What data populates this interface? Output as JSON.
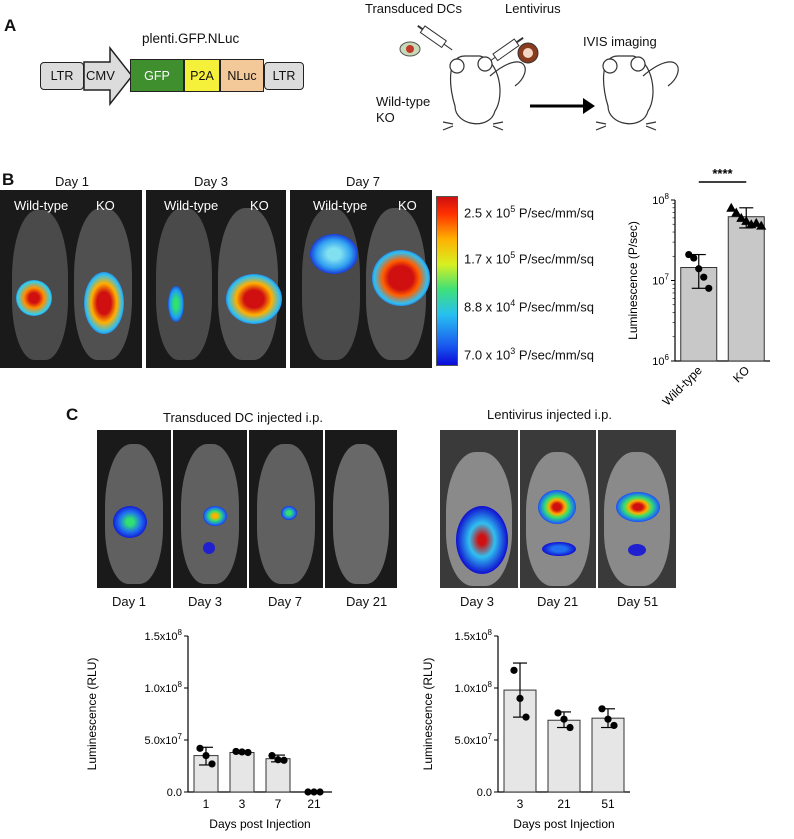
{
  "panelA": {
    "letter": "A",
    "construct_title": "plenti.GFP.NLuc",
    "segments": [
      "LTR",
      "CMV",
      "GFP",
      "P2A",
      "NLuc",
      "LTR"
    ],
    "transduced_dcs": "Transduced DCs",
    "lentivirus": "Lentivirus",
    "ivis": "IVIS imaging",
    "wildtype": "Wild-type",
    "ko": "KO"
  },
  "panelB": {
    "letter": "B",
    "days": [
      "Day 1",
      "Day 3",
      "Day 7"
    ],
    "wildtype": "Wild-type",
    "ko": "KO",
    "scale": [
      {
        "mant": "2.5 x 10",
        "exp": "5",
        "unit": " P/sec/mm/sq"
      },
      {
        "mant": "1.7 x 10",
        "exp": "5",
        "unit": " P/sec/mm/sq"
      },
      {
        "mant": "8.8 x 10",
        "exp": "4",
        "unit": " P/sec/mm/sq"
      },
      {
        "mant": "7.0 x 10",
        "exp": "3",
        "unit": " P/sec/mm/sq"
      }
    ],
    "sig": "****"
  },
  "panelC": {
    "letter": "C",
    "left_title": "Transduced DC injected i.p.",
    "right_title": "Lentivirus injected i.p.",
    "left_days": [
      "Day 1",
      "Day 3",
      "Day 7",
      "Day 21"
    ],
    "right_days": [
      "Day 3",
      "Day 21",
      "Day 51"
    ]
  },
  "chart_data": [
    {
      "type": "bar",
      "panel": "B",
      "categories": [
        "Wild-type",
        "KO"
      ],
      "values": [
        14500000,
        62000000
      ],
      "errors": [
        [
          8000000,
          21000000
        ],
        [
          45000000,
          80000000
        ]
      ],
      "points": [
        [
          21000000,
          19000000,
          14000000,
          11000000,
          8000000
        ],
        [
          80000000,
          70000000,
          60000000,
          55000000,
          50000000,
          52000000,
          48000000
        ]
      ],
      "ylabel": "Luminescence (P/sec)",
      "yscale": "log",
      "ylim": [
        1000000,
        100000000
      ],
      "yticks": [
        {
          "b": "10",
          "e": "6"
        },
        {
          "b": "10",
          "e": "7"
        },
        {
          "b": "10",
          "e": "8"
        }
      ]
    },
    {
      "type": "bar",
      "panel": "C-left",
      "categories": [
        "1",
        "3",
        "7",
        "21"
      ],
      "values": [
        35000000,
        38000000,
        32000000,
        0
      ],
      "errors": [
        [
          26000000,
          43000000
        ],
        [
          37000000,
          39500000
        ],
        [
          29000000,
          35500000
        ],
        [
          0,
          0
        ]
      ],
      "points": [
        [
          42000000,
          35000000,
          27000000
        ],
        [
          39000000,
          38500000,
          38000000
        ],
        [
          35000000,
          31000000,
          30500000
        ],
        [
          0,
          0,
          0
        ]
      ],
      "xlabel": "Days post Injection",
      "ylabel": "Luminescence (RLU)",
      "ylim": [
        0,
        150000000
      ],
      "yticks": [
        {
          "b": "0.0",
          "e": ""
        },
        {
          "b": "5.0x10",
          "e": "7"
        },
        {
          "b": "1.0x10",
          "e": "8"
        },
        {
          "b": "1.5x10",
          "e": "8"
        }
      ]
    },
    {
      "type": "bar",
      "panel": "C-right",
      "categories": [
        "3",
        "21",
        "51"
      ],
      "values": [
        98000000,
        69000000,
        71000000
      ],
      "errors": [
        [
          72000000,
          124000000
        ],
        [
          62000000,
          77000000
        ],
        [
          62000000,
          80000000
        ]
      ],
      "points": [
        [
          117000000,
          90000000,
          72000000
        ],
        [
          76000000,
          70000000,
          62000000
        ],
        [
          80000000,
          70000000,
          64000000
        ]
      ],
      "xlabel": "Days post Injection",
      "ylabel": "Luminescence (RLU)",
      "ylim": [
        0,
        150000000
      ],
      "yticks": [
        {
          "b": "0.0",
          "e": ""
        },
        {
          "b": "5.0x10",
          "e": "7"
        },
        {
          "b": "1.0x10",
          "e": "8"
        },
        {
          "b": "1.5x10",
          "e": "8"
        }
      ]
    }
  ]
}
